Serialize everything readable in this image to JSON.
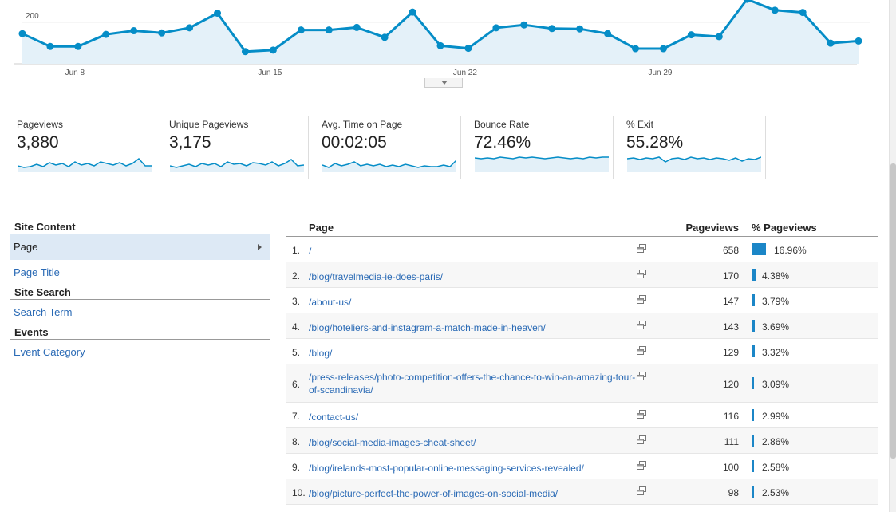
{
  "chart_data": {
    "type": "area",
    "title": "",
    "xlabel": "",
    "ylabel": "",
    "y_tick_labels": [
      "200"
    ],
    "x_tick_labels": [
      "Jun 8",
      "Jun 15",
      "Jun 22",
      "Jun 29"
    ],
    "series": [
      {
        "values": [
          148,
          113,
          113,
          146,
          156,
          150,
          164,
          204,
          99,
          103,
          158,
          158,
          165,
          138,
          207,
          115,
          108,
          164,
          172,
          162,
          161,
          148,
          107,
          107,
          145,
          140,
          242,
          212,
          206,
          122,
          128
        ]
      }
    ],
    "ylim": [
      70,
      240
    ],
    "grid": true,
    "color": "#058dc7"
  },
  "metrics": [
    {
      "label": "Pageviews",
      "value": "3,880"
    },
    {
      "label": "Unique Pageviews",
      "value": "3,175"
    },
    {
      "label": "Avg. Time on Page",
      "value": "00:02:05"
    },
    {
      "label": "Bounce Rate",
      "value": "72.46%"
    },
    {
      "label": "% Exit",
      "value": "55.28%"
    }
  ],
  "sidebar": {
    "site_content": "Site Content",
    "page": "Page",
    "page_title": "Page Title",
    "site_search": "Site Search",
    "search_term": "Search Term",
    "events": "Events",
    "event_category": "Event Category"
  },
  "table": {
    "col_page": "Page",
    "col_pageviews": "Pageviews",
    "col_pct": "% Pageviews",
    "rows": [
      {
        "rank": "1.",
        "page": "/",
        "pageviews": "658",
        "pct": "16.96%",
        "share": 16.96
      },
      {
        "rank": "2.",
        "page": "/blog/travelmedia-ie-does-paris/",
        "pageviews": "170",
        "pct": "4.38%",
        "share": 4.38
      },
      {
        "rank": "3.",
        "page": "/about-us/",
        "pageviews": "147",
        "pct": "3.79%",
        "share": 3.79
      },
      {
        "rank": "4.",
        "page": "/blog/hoteliers-and-instagram-a-match-made-in-heaven/",
        "pageviews": "143",
        "pct": "3.69%",
        "share": 3.69
      },
      {
        "rank": "5.",
        "page": "/blog/",
        "pageviews": "129",
        "pct": "3.32%",
        "share": 3.32
      },
      {
        "rank": "6.",
        "page": "/press-releases/photo-competition-offers-the-chance-to-win-an-amazing-tour-of-scandinavia/",
        "pageviews": "120",
        "pct": "3.09%",
        "share": 3.09
      },
      {
        "rank": "7.",
        "page": "/contact-us/",
        "pageviews": "116",
        "pct": "2.99%",
        "share": 2.99
      },
      {
        "rank": "8.",
        "page": "/blog/social-media-images-cheat-sheet/",
        "pageviews": "111",
        "pct": "2.86%",
        "share": 2.86
      },
      {
        "rank": "9.",
        "page": "/blog/irelands-most-popular-online-messaging-services-revealed/",
        "pageviews": "100",
        "pct": "2.58%",
        "share": 2.58
      },
      {
        "rank": "10.",
        "page": "/blog/picture-perfect-the-power-of-images-on-social-media/",
        "pageviews": "98",
        "pct": "2.53%",
        "share": 2.53
      }
    ]
  }
}
